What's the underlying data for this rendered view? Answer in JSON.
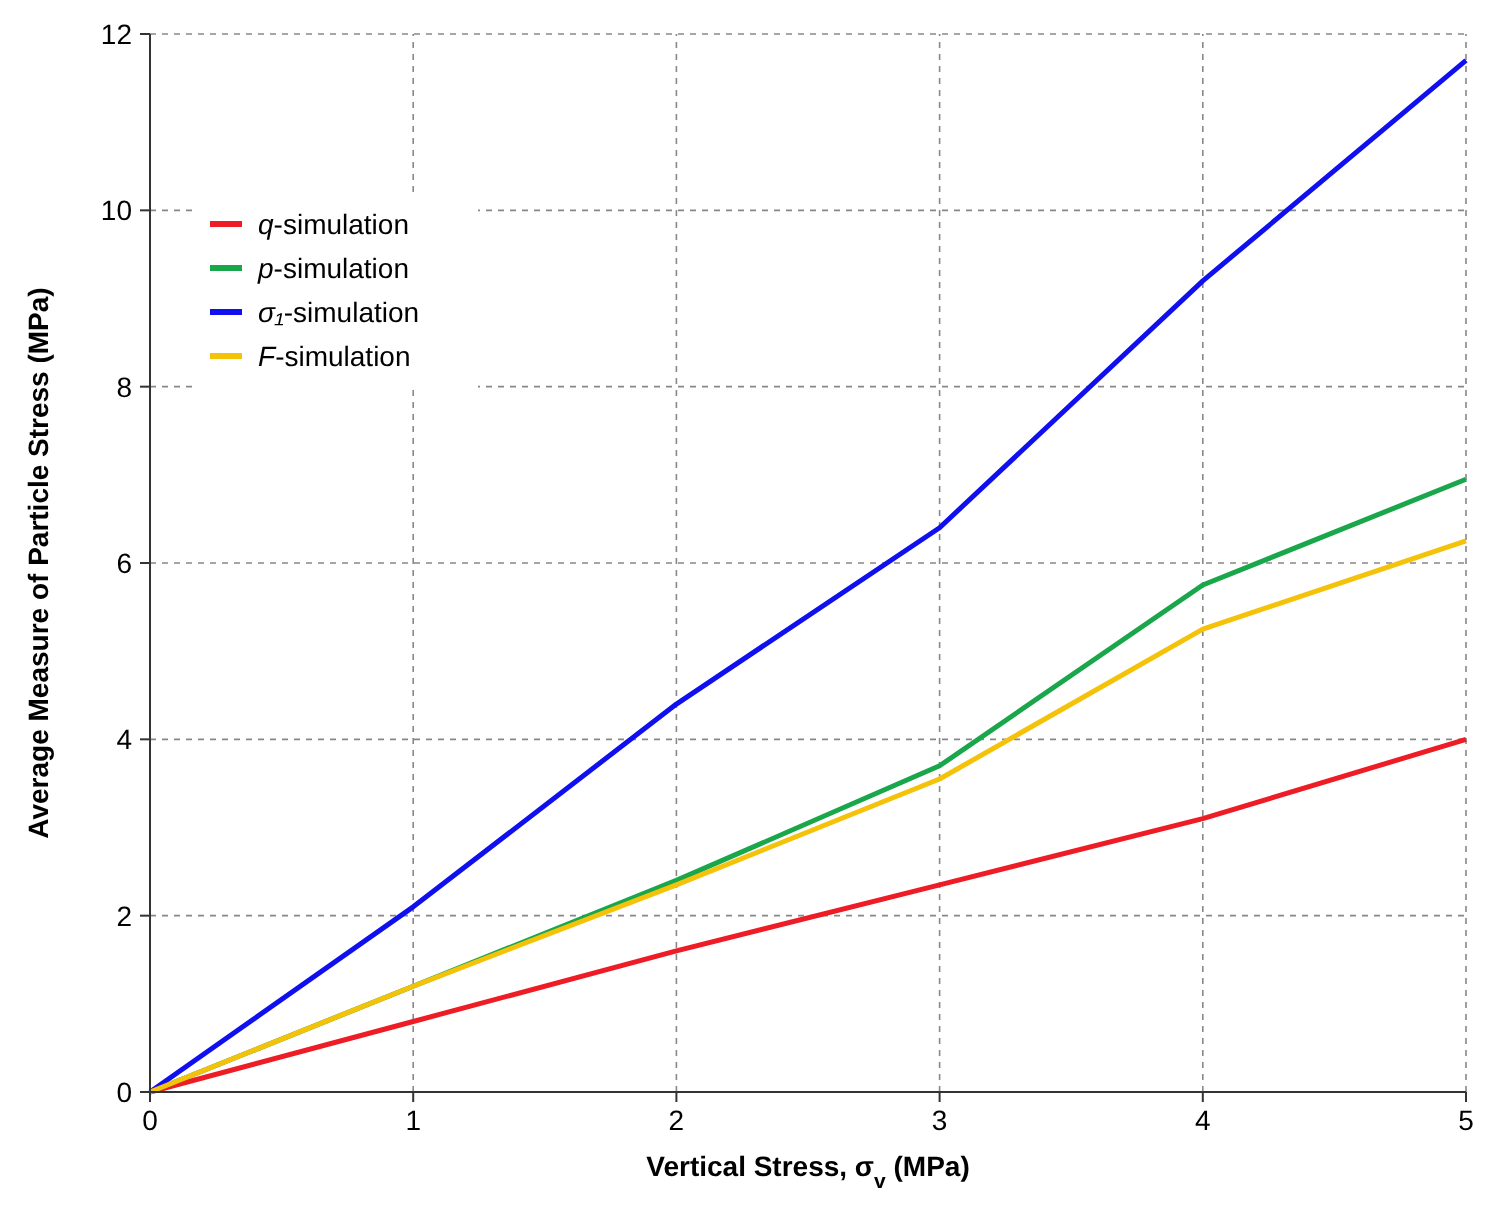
{
  "chart_data": {
    "type": "line",
    "xlabel": "Vertical Stress, σ$_{v}$ (MPa)",
    "ylabel": "Average Measure of Particle Stress (MPa)",
    "x": [
      0,
      1,
      2,
      3,
      4,
      5
    ],
    "xlim": [
      0,
      5
    ],
    "xticks": [
      0,
      1,
      2,
      3,
      4,
      5
    ],
    "ylim": [
      0,
      12
    ],
    "yticks": [
      0,
      2,
      4,
      6,
      8,
      10,
      12
    ],
    "grid": true,
    "legend": "top left",
    "line_style": "solid",
    "marker": "none",
    "series": [
      {
        "name": "q-simulation",
        "color": "#ee1c25",
        "values": [
          0,
          0.8,
          1.6,
          2.35,
          3.1,
          4.0
        ]
      },
      {
        "name": "p-simulation",
        "color": "#1aa64a",
        "values": [
          0,
          1.2,
          2.4,
          3.7,
          5.75,
          6.95
        ]
      },
      {
        "name": "σ₁-simulation",
        "color": "#1010ee",
        "values": [
          0,
          2.1,
          4.4,
          6.4,
          9.2,
          11.7
        ]
      },
      {
        "name": "F-simulation",
        "color": "#f5c20a",
        "values": [
          0,
          1.2,
          2.35,
          3.55,
          5.25,
          6.25
        ]
      }
    ]
  }
}
